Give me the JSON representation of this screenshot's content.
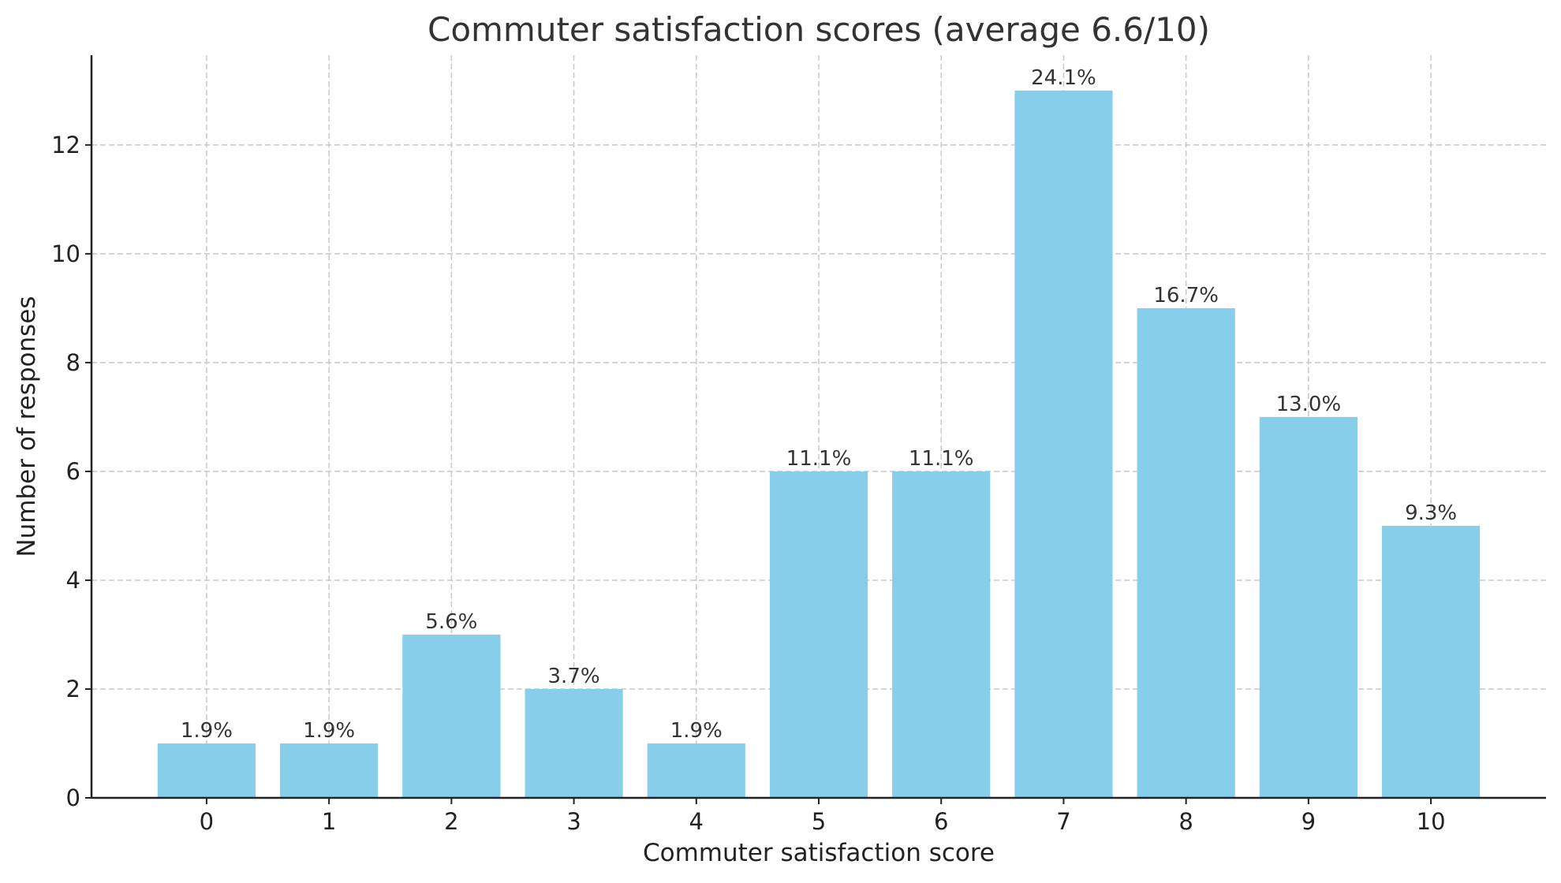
{
  "chart_data": {
    "type": "bar",
    "title": "Commuter satisfaction scores (average 6.6/10)",
    "xlabel": "Commuter satisfaction score",
    "ylabel": "Number of responses",
    "categories": [
      "0",
      "1",
      "2",
      "3",
      "4",
      "5",
      "6",
      "7",
      "8",
      "9",
      "10"
    ],
    "values": [
      1,
      1,
      3,
      2,
      1,
      6,
      6,
      13,
      9,
      7,
      5
    ],
    "data_labels": [
      "1.9%",
      "1.9%",
      "5.6%",
      "3.7%",
      "1.9%",
      "11.1%",
      "11.1%",
      "24.1%",
      "16.7%",
      "13.0%",
      "9.3%"
    ],
    "yticks": [
      "0",
      "2",
      "4",
      "6",
      "8",
      "10",
      "12"
    ],
    "ylim": [
      0,
      13.65
    ],
    "xlim": [
      -0.94,
      10.94
    ],
    "grid": true,
    "bar_color": "#87CEEB"
  }
}
